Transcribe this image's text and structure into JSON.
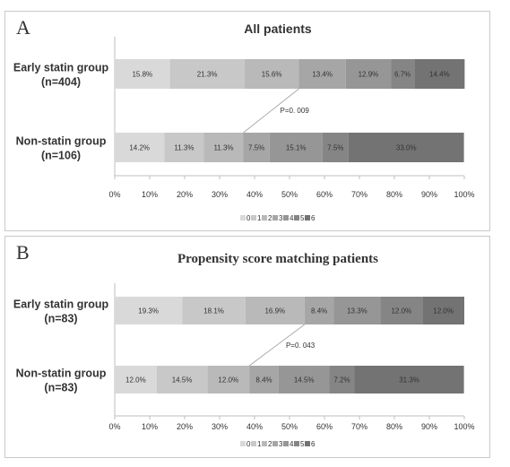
{
  "panels": [
    {
      "letter": "A",
      "chart_data": {
        "type": "bar",
        "orientation": "horizontal",
        "stacked": "percent",
        "title": "All patients",
        "categories": [
          [
            "Early statin group",
            "(n=404)"
          ],
          [
            "Non-statin group",
            "(n=106)"
          ]
        ],
        "series": [
          {
            "name": "0",
            "color": "#d9d9d9",
            "values": [
              15.8,
              14.2
            ],
            "labels": [
              "15.8%",
              "14.2%"
            ]
          },
          {
            "name": "1",
            "color": "#c8c8c8",
            "values": [
              21.3,
              11.3
            ],
            "labels": [
              "21.3%",
              "11.3%"
            ]
          },
          {
            "name": "2",
            "color": "#b9b9b9",
            "values": [
              15.6,
              11.3
            ],
            "labels": [
              "15.6%",
              "11.3%"
            ]
          },
          {
            "name": "3",
            "color": "#a6a6a6",
            "values": [
              13.4,
              7.5
            ],
            "labels": [
              "13.4%",
              "7.5%"
            ]
          },
          {
            "name": "4",
            "color": "#969696",
            "values": [
              12.9,
              15.1
            ],
            "labels": [
              "12.9%",
              "15.1%"
            ]
          },
          {
            "name": "5",
            "color": "#858585",
            "values": [
              6.7,
              7.5
            ],
            "labels": [
              "6.7%",
              "7.5%"
            ]
          },
          {
            "name": "6",
            "color": "#737373",
            "values": [
              14.4,
              33.0
            ],
            "labels": [
              "14.4%",
              "33.0%"
            ]
          }
        ],
        "xlim": [
          0,
          100
        ],
        "xticks": [
          "0%",
          "10%",
          "20%",
          "30%",
          "40%",
          "50%",
          "60%",
          "70%",
          "80%",
          "90%",
          "100%"
        ],
        "annotation": {
          "text": "P=0. 009",
          "from_category": 1,
          "from_cumulative": 36.8,
          "to_category": 0,
          "to_cumulative": 52.7
        },
        "legend": "bottom"
      }
    },
    {
      "letter": "B",
      "chart_data": {
        "type": "bar",
        "orientation": "horizontal",
        "stacked": "percent",
        "title": "Propensity score matching patients",
        "categories": [
          [
            "Early statin group",
            "(n=83)"
          ],
          [
            "Non-statin group",
            "(n=83)"
          ]
        ],
        "series": [
          {
            "name": "0",
            "color": "#d9d9d9",
            "values": [
              19.3,
              12.0
            ],
            "labels": [
              "19.3%",
              "12.0%"
            ]
          },
          {
            "name": "1",
            "color": "#c8c8c8",
            "values": [
              18.1,
              14.5
            ],
            "labels": [
              "18.1%",
              "14.5%"
            ]
          },
          {
            "name": "2",
            "color": "#b9b9b9",
            "values": [
              16.9,
              12.0
            ],
            "labels": [
              "16.9%",
              "12.0%"
            ]
          },
          {
            "name": "3",
            "color": "#a6a6a6",
            "values": [
              8.4,
              8.4
            ],
            "labels": [
              "8.4%",
              "8.4%"
            ]
          },
          {
            "name": "4",
            "color": "#969696",
            "values": [
              13.3,
              14.5
            ],
            "labels": [
              "13.3%",
              "14.5%"
            ]
          },
          {
            "name": "5",
            "color": "#858585",
            "values": [
              12.0,
              7.2
            ],
            "labels": [
              "12.0%",
              "7.2%"
            ]
          },
          {
            "name": "6",
            "color": "#737373",
            "values": [
              12.0,
              31.3
            ],
            "labels": [
              "12.0%",
              "31.3%"
            ]
          }
        ],
        "xlim": [
          0,
          100
        ],
        "xticks": [
          "0%",
          "10%",
          "20%",
          "30%",
          "40%",
          "50%",
          "60%",
          "70%",
          "80%",
          "90%",
          "100%"
        ],
        "annotation": {
          "text": "P=0. 043",
          "from_category": 1,
          "from_cumulative": 38.5,
          "to_category": 0,
          "to_cumulative": 54.3
        },
        "legend": "bottom"
      }
    }
  ]
}
